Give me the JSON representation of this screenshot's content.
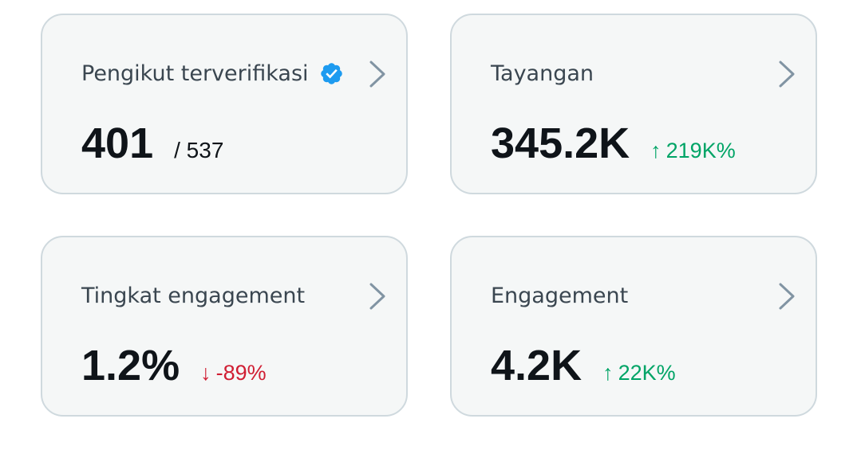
{
  "cards": [
    {
      "title": "Pengikut terverifikasi",
      "value": "401",
      "secondary": "/ 537",
      "verified": true
    },
    {
      "title": "Tayangan",
      "value": "345.2K",
      "delta": {
        "arrow": "↑",
        "text": "219K%",
        "direction": "up",
        "color": "#00a466"
      }
    },
    {
      "title": "Tingkat engagement",
      "value": "1.2%",
      "delta": {
        "arrow": "↓",
        "text": "-89%",
        "direction": "down",
        "color": "#d01e33"
      }
    },
    {
      "title": "Engagement",
      "value": "4.2K",
      "delta": {
        "arrow": "↑",
        "text": "22K%",
        "direction": "up",
        "color": "#00a466"
      }
    }
  ],
  "icons": {
    "verified": "verified-badge-icon",
    "chevron": "chevron-right-icon"
  },
  "colors": {
    "verified_badge": "#1d9bf0",
    "chevron": "#8194a3",
    "card_background": "#f5f7f7",
    "card_border": "#cfd9de",
    "positive": "#00a466",
    "negative": "#d01e33"
  }
}
